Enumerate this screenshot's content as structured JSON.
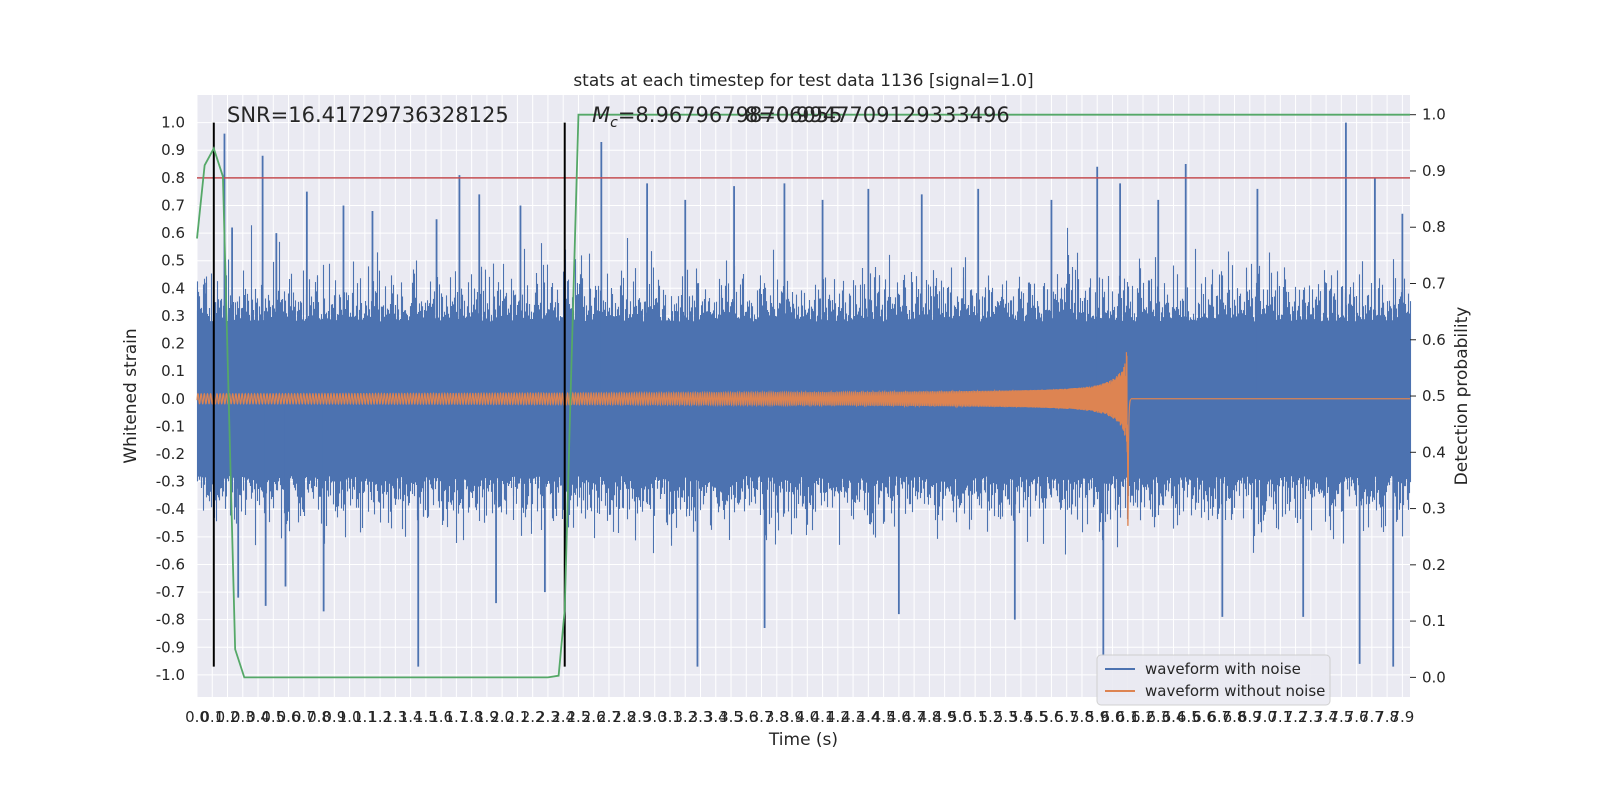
{
  "chart_data": {
    "type": "line",
    "title": "stats at each timestep for test data 1136 [signal=1.0]",
    "xlabel": "Time (s)",
    "ylabel": "Whitened strain",
    "y2label": "Detection probability",
    "xlim": [
      0.0,
      7.95
    ],
    "ylim": [
      -1.08,
      1.1
    ],
    "y2lim": [
      -0.0349,
      1.035
    ],
    "x_tick_step": 0.1,
    "y_tick_step": 0.1,
    "y2_ticks": [
      0.0,
      0.1,
      0.2,
      0.3,
      0.4,
      0.5,
      0.6,
      0.7,
      0.8,
      0.9,
      1.0
    ],
    "grid": true,
    "background": "#eaeaf2",
    "legend_position": "lower-right",
    "annotations": {
      "snr": "SNR=16.41729736328125",
      "mc_symbol": "M",
      "mc_subscript": "c",
      "mc_a": "=8.96796798706055",
      "mc_b": "8=0.9947709129333496"
    },
    "vertical_lines": [
      0.11,
      2.41
    ],
    "threshold_line": {
      "y": 0.8,
      "color": "#c44e52"
    },
    "series": [
      {
        "name": "waveform with noise",
        "color": "#4c72b0",
        "description_envelope_inner": 0.28,
        "spikes": [
          [
            0.06,
            0.42
          ],
          [
            0.12,
            0.35
          ],
          [
            0.18,
            0.96
          ],
          [
            0.23,
            0.62
          ],
          [
            0.27,
            -0.72
          ],
          [
            0.43,
            0.88
          ],
          [
            0.45,
            -0.75
          ],
          [
            0.52,
            0.6
          ],
          [
            0.58,
            -0.68
          ],
          [
            0.72,
            0.75
          ],
          [
            0.83,
            -0.77
          ],
          [
            0.96,
            0.7
          ],
          [
            1.15,
            0.68
          ],
          [
            1.45,
            -0.97
          ],
          [
            1.57,
            0.65
          ],
          [
            1.72,
            0.81
          ],
          [
            1.85,
            0.74
          ],
          [
            1.96,
            -0.74
          ],
          [
            2.12,
            0.7
          ],
          [
            2.28,
            -0.7
          ],
          [
            2.65,
            0.93
          ],
          [
            2.95,
            0.78
          ],
          [
            3.2,
            0.72
          ],
          [
            3.28,
            -0.97
          ],
          [
            3.52,
            0.77
          ],
          [
            3.72,
            -0.83
          ],
          [
            3.85,
            0.78
          ],
          [
            4.1,
            0.72
          ],
          [
            4.4,
            0.76
          ],
          [
            4.6,
            -0.78
          ],
          [
            4.75,
            0.74
          ],
          [
            5.12,
            0.76
          ],
          [
            5.36,
            -0.8
          ],
          [
            5.6,
            0.72
          ],
          [
            5.9,
            0.84
          ],
          [
            5.94,
            -0.93
          ],
          [
            6.05,
            0.78
          ],
          [
            6.3,
            0.72
          ],
          [
            6.48,
            0.85
          ],
          [
            6.72,
            -0.79
          ],
          [
            6.95,
            0.76
          ],
          [
            7.25,
            -0.79
          ],
          [
            7.53,
            1.0
          ],
          [
            7.62,
            -0.96
          ],
          [
            7.72,
            0.8
          ],
          [
            7.84,
            -0.97
          ],
          [
            7.9,
            0.67
          ]
        ]
      },
      {
        "name": "waveform without noise",
        "color": "#dd8452",
        "merger_time": 6.1,
        "peak_amplitude": 0.63
      },
      {
        "name": "detection probability",
        "color": "#55a868",
        "axis": "right",
        "x": [
          0.0,
          0.05,
          0.11,
          0.17,
          0.25,
          0.31,
          0.5,
          1.0,
          1.5,
          2.0,
          2.3,
          2.37,
          2.41,
          2.44,
          2.5,
          3.0,
          5.0,
          7.95
        ],
        "y": [
          0.78,
          0.91,
          0.94,
          0.89,
          0.05,
          0.0,
          0.0,
          0.0,
          0.0,
          0.0,
          0.0,
          0.003,
          0.12,
          0.42,
          1.0,
          1.0,
          1.0,
          1.0
        ]
      }
    ]
  }
}
